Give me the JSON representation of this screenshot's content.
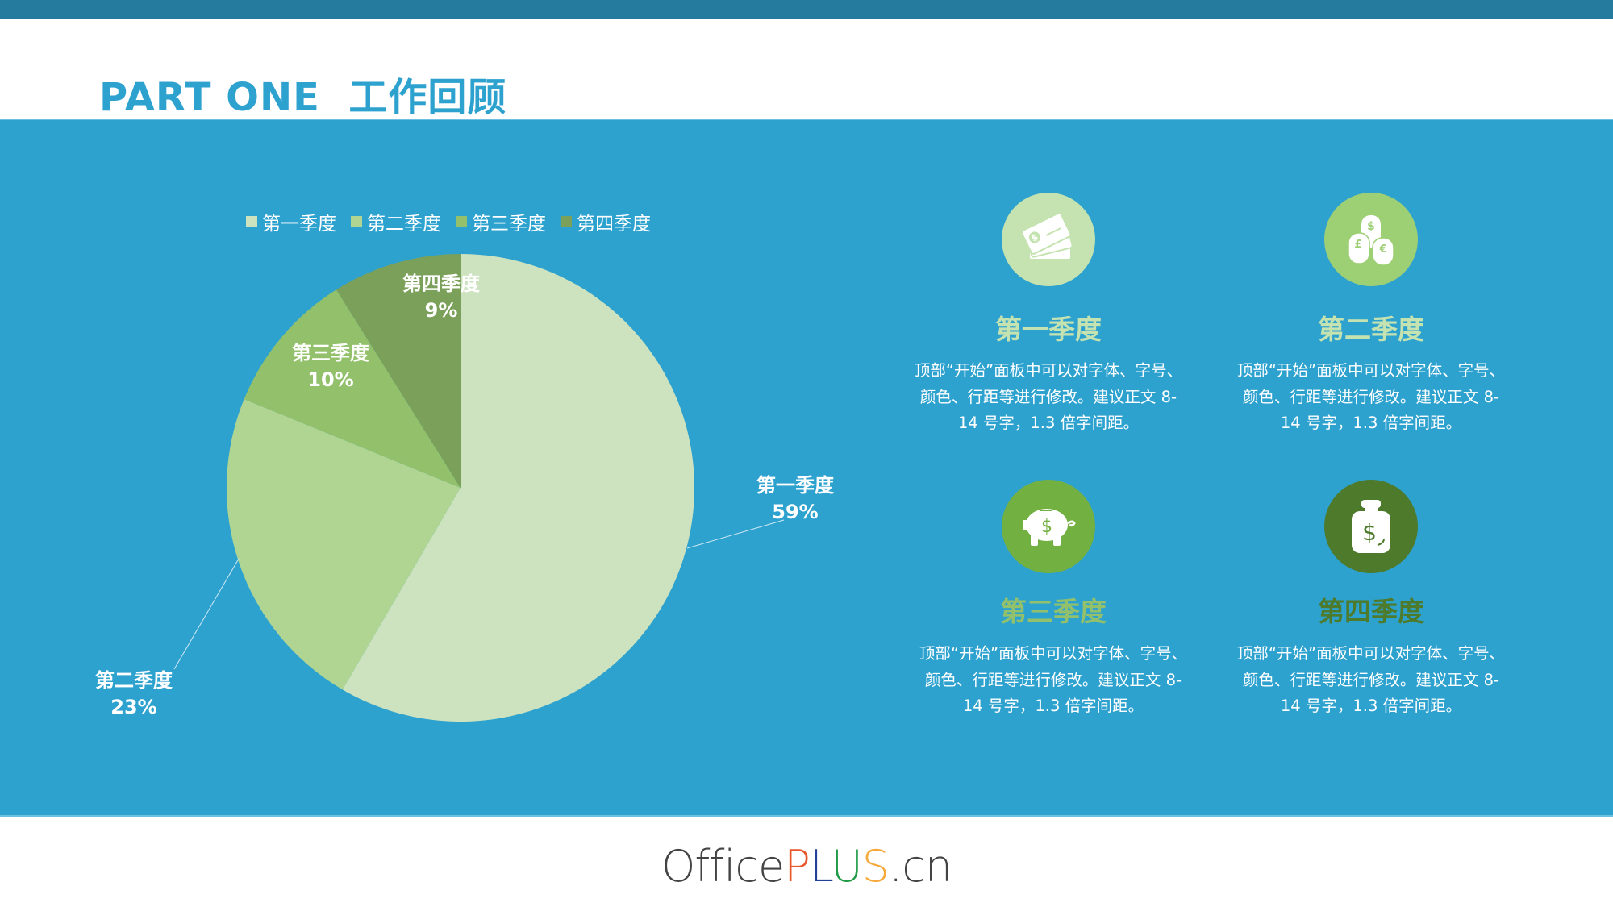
{
  "header": {
    "title": "PART ONE  工作回顾"
  },
  "colors": {
    "topbar": "#247b9d",
    "main_bg": "#2ea2cf",
    "title": "#2ea2cf",
    "q1": "#cde3bf",
    "q2": "#b0d592",
    "q3": "#93c16b",
    "q4": "#7aa05a"
  },
  "legend": {
    "items": [
      {
        "label": "第一季度",
        "color": "#cde3bf"
      },
      {
        "label": "第二季度",
        "color": "#b0d592"
      },
      {
        "label": "第三季度",
        "color": "#93c16b"
      },
      {
        "label": "第四季度",
        "color": "#7aa05a"
      }
    ]
  },
  "pie_labels": [
    {
      "name": "第一季度",
      "pct": "59%"
    },
    {
      "name": "第二季度",
      "pct": "23%"
    },
    {
      "name": "第三季度",
      "pct": "10%"
    },
    {
      "name": "第四季度",
      "pct": "9%"
    }
  ],
  "chart_data": {
    "type": "pie",
    "title": "",
    "categories": [
      "第一季度",
      "第二季度",
      "第三季度",
      "第四季度"
    ],
    "values": [
      59,
      23,
      10,
      9
    ],
    "unit": "%",
    "colors": [
      "#cde3bf",
      "#b0d592",
      "#93c16b",
      "#7aa05a"
    ],
    "legend_position": "top",
    "data_labels": [
      "第一季度 59%",
      "第二季度 23%",
      "第三季度 10%",
      "第四季度 9%"
    ]
  },
  "cards": [
    {
      "icon": "credit-cards-icon",
      "circle_color": "#c5e3b0",
      "title": "第一季度",
      "title_color": "#c5e3b0",
      "lines": [
        "顶部“开始”面板中可以对字体、字号、",
        "颜色、行距等进行修改。建议正文 8-",
        "14 号字，1.3 倍字间距。"
      ]
    },
    {
      "icon": "coin-stacks-icon",
      "circle_color": "#9dcf74",
      "title": "第二季度",
      "title_color": "#c5e3b0",
      "lines": [
        "顶部“开始”面板中可以对字体、字号、",
        "颜色、行距等进行修改。建议正文 8-",
        "14 号字，1.3 倍字间距。"
      ]
    },
    {
      "icon": "piggy-bank-icon",
      "circle_color": "#72b042",
      "title": "第三季度",
      "title_color": "#93c16b",
      "lines": [
        "顶部“开始”面板中可以对字体、字号、",
        "颜色、行距等进行修改。建议正文 8-",
        "14 号字，1.3 倍字间距。"
      ]
    },
    {
      "icon": "money-bag-icon",
      "circle_color": "#4d7a2b",
      "title": "第四季度",
      "title_color": "#4d7a2b",
      "lines": [
        "顶部“开始”面板中可以对字体、字号、",
        "颜色、行距等进行修改。建议正文 8-",
        "14 号字，1.3 倍字间距。"
      ]
    }
  ],
  "footer": {
    "logo_office": "Office",
    "logo_p": "P",
    "logo_l": "L",
    "logo_u": "U",
    "logo_s": "S",
    "logo_cn": ".cn"
  }
}
